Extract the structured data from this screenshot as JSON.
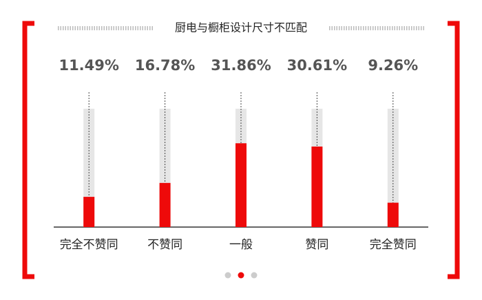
{
  "chart_data": {
    "type": "bar",
    "title": "厨电与橱柜设计尺寸不匹配",
    "categories": [
      "完全不赞同",
      "不赞同",
      "一般",
      "赞同",
      "完全赞同"
    ],
    "values": [
      11.49,
      16.78,
      31.86,
      30.61,
      9.26
    ],
    "value_labels": [
      "11.49%",
      "16.78%",
      "31.86%",
      "30.61%",
      "9.26%"
    ],
    "color": "#ee0a0a",
    "ylim": [
      0,
      45
    ]
  }
}
